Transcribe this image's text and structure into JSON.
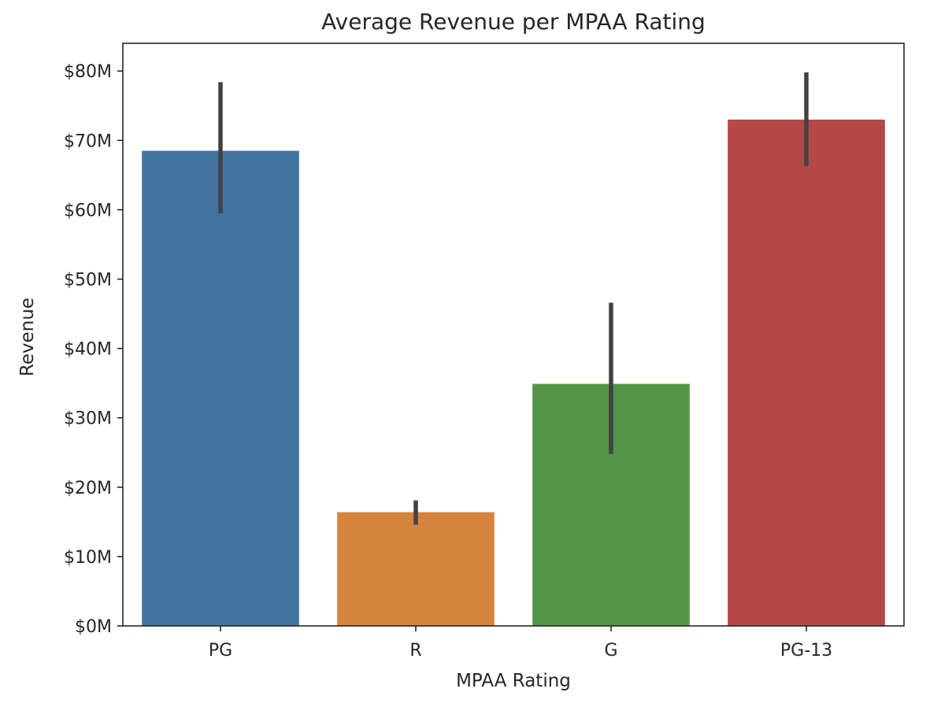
{
  "chart_data": {
    "type": "bar",
    "title": "Average Revenue per MPAA Rating",
    "xlabel": "MPAA Rating",
    "ylabel": "Revenue",
    "categories": [
      "PG",
      "R",
      "G",
      "PG-13"
    ],
    "values": [
      68.5,
      16.4,
      34.9,
      73.0
    ],
    "error_low": [
      59.5,
      14.6,
      24.8,
      66.3
    ],
    "error_high": [
      78.4,
      18.1,
      46.6,
      79.8
    ],
    "unit": "$M",
    "colors": [
      "#4372a0",
      "#d5843f",
      "#549446",
      "#b34946"
    ],
    "error_color": "#424242",
    "ylim": [
      0,
      84
    ],
    "yticks": [
      0,
      10,
      20,
      30,
      40,
      50,
      60,
      70,
      80
    ],
    "ytick_labels": [
      "$0M",
      "$10M",
      "$20M",
      "$30M",
      "$40M",
      "$50M",
      "$60M",
      "$70M",
      "$80M"
    ],
    "grid": false,
    "legend": "none"
  }
}
